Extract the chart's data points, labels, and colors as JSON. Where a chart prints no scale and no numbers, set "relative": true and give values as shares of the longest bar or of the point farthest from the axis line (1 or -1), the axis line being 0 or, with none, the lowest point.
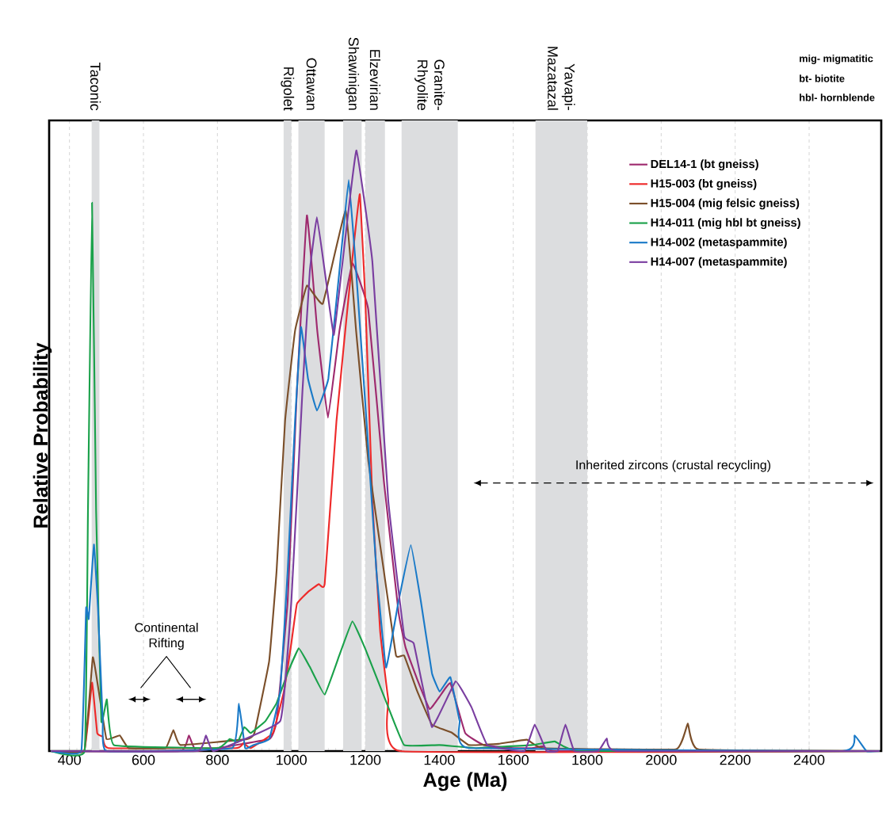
{
  "chart_data": {
    "type": "line",
    "relative": true,
    "xlabel": "Age (Ma)",
    "ylabel": "Relative Probability",
    "xlim": [
      345,
      2595
    ],
    "xticks": [
      400,
      600,
      800,
      1000,
      1200,
      1400,
      1600,
      1800,
      2000,
      2200,
      2400
    ],
    "grid": "x",
    "legend": "top right",
    "series": [
      {
        "name": "DEL14-1 (bt gneiss)",
        "color": "#9e2a6e",
        "x": [
          350,
          700,
          723,
          745,
          940,
          960,
          990,
          1015,
          1042,
          1070,
          1099,
          1130,
          1165,
          1208,
          1250,
          1290,
          1309,
          1340,
          1374,
          1400,
          1430,
          1470,
          1520,
          1600,
          1650,
          1682,
          1720,
          2590
        ],
        "values": [
          0,
          0,
          0.026,
          0,
          0.02,
          0.05,
          0.25,
          0.6,
          0.892,
          0.7,
          0.555,
          0.7,
          0.812,
          0.735,
          0.45,
          0.23,
          0.172,
          0.12,
          0.07,
          0.09,
          0.113,
          0.03,
          0.01,
          0.005,
          0.005,
          0.008,
          0,
          0
        ]
      },
      {
        "name": "H15-003 (bt gneiss)",
        "color": "#ee2a2a",
        "x": [
          350,
          440,
          461,
          475,
          490,
          505,
          850,
          870,
          890,
          950,
          980,
          1000,
          1015,
          1045,
          1074,
          1090,
          1122,
          1165,
          1185,
          1200,
          1219,
          1240,
          1262,
          1294,
          2590
        ],
        "values": [
          0,
          0,
          0.114,
          0.03,
          0.024,
          0.005,
          0.005,
          0.013,
          0.005,
          0.03,
          0.1,
          0.18,
          0.245,
          0.265,
          0.278,
          0.278,
          0.55,
          0.82,
          0.927,
          0.75,
          0.417,
          0.2,
          0.086,
          0,
          0
        ]
      },
      {
        "name": "H15-004 (mig felsic gneiss)",
        "color": "#7b4f2a",
        "x": [
          350,
          440,
          463,
          479,
          500,
          536,
          560,
          660,
          681,
          700,
          880,
          900,
          940,
          960,
          983,
          1010,
          1042,
          1085,
          1147,
          1175,
          1208,
          1250,
          1283,
          1305,
          1340,
          1380,
          1433,
          1480,
          1560,
          1637,
          1680,
          2040,
          2072,
          2100,
          2590
        ],
        "values": [
          0,
          0,
          0.156,
          0.1,
          0.02,
          0.026,
          0.005,
          0.005,
          0.035,
          0.01,
          0.02,
          0.03,
          0.15,
          0.3,
          0.55,
          0.7,
          0.775,
          0.745,
          0.9,
          0.7,
          0.483,
          0.3,
          0.159,
          0.159,
          0.1,
          0.044,
          0.031,
          0.01,
          0.012,
          0.019,
          0.005,
          0.003,
          0.046,
          0.003,
          0
        ]
      },
      {
        "name": "H14-011 (mig hbl bt gneiss)",
        "color": "#1aa14a",
        "x": [
          350,
          441,
          450,
          461,
          472,
          486,
          501,
          520,
          800,
          833,
          855,
          873,
          890,
          930,
          960,
          990,
          1020,
          1050,
          1090,
          1130,
          1165,
          1200,
          1262,
          1305,
          1400,
          1500,
          1650,
          1712,
          1780,
          2590
        ],
        "values": [
          0,
          0,
          0.4,
          0.913,
          0.4,
          0.05,
          0.086,
          0.01,
          0.005,
          0.02,
          0.015,
          0.04,
          0.03,
          0.05,
          0.08,
          0.13,
          0.171,
          0.14,
          0.094,
          0.16,
          0.216,
          0.17,
          0.073,
          0.01,
          0.01,
          0.005,
          0.01,
          0.016,
          0,
          0
        ]
      },
      {
        "name": "H14-002 (metaspammite)",
        "color": "#1a7ac8",
        "x": [
          350,
          432,
          445,
          452,
          466,
          477,
          490,
          500,
          840,
          858,
          875,
          897,
          940,
          970,
          990,
          1010,
          1026,
          1045,
          1069,
          1100,
          1130,
          1155,
          1175,
          1203,
          1230,
          1256,
          1290,
          1323,
          1350,
          1380,
          1401,
          1430,
          1455,
          1480,
          2490,
          2523,
          2555,
          2590
        ],
        "values": [
          0,
          0,
          0.238,
          0.22,
          0.344,
          0.238,
          0.05,
          0,
          0.005,
          0.079,
          0.005,
          0.01,
          0.02,
          0.1,
          0.3,
          0.55,
          0.706,
          0.62,
          0.567,
          0.62,
          0.8,
          0.951,
          0.8,
          0.55,
          0.3,
          0.139,
          0.25,
          0.343,
          0.25,
          0.13,
          0.099,
          0.123,
          0.05,
          0.005,
          0,
          0.026,
          0,
          0
        ]
      },
      {
        "name": "H14-007 (metaspammite)",
        "color": "#7a3ea0",
        "x": [
          350,
          745,
          769,
          790,
          970,
          1000,
          1030,
          1050,
          1069,
          1090,
          1115,
          1145,
          1176,
          1219,
          1262,
          1305,
          1331,
          1380,
          1444,
          1487,
          1530,
          1630,
          1658,
          1690,
          1720,
          1741,
          1765,
          1830,
          1853,
          1880,
          2590
        ],
        "values": [
          0,
          0,
          0.026,
          0,
          0.05,
          0.25,
          0.6,
          0.8,
          0.889,
          0.8,
          0.693,
          0.85,
          1.0,
          0.815,
          0.417,
          0.192,
          0.179,
          0.04,
          0.116,
          0.073,
          0.01,
          0,
          0.044,
          0,
          0,
          0.044,
          0,
          0,
          0.021,
          0,
          0
        ]
      }
    ],
    "bands": [
      {
        "axis": "x",
        "from": 460,
        "to": 481,
        "label": "Taconic",
        "color": "#dcdddf"
      },
      {
        "axis": "x",
        "from": 979,
        "to": 1000,
        "label": "Rigolet",
        "color": "#dcdddf"
      },
      {
        "axis": "x",
        "from": 1019,
        "to": 1090,
        "label": "Ottawan",
        "color": "#dcdddf"
      },
      {
        "axis": "x",
        "from": 1140,
        "to": 1190,
        "label": "Shawinigan",
        "color": "#dcdddf"
      },
      {
        "axis": "x",
        "from": 1200,
        "to": 1253,
        "label": "Elzevirian",
        "color": "#dcdddf"
      },
      {
        "axis": "x",
        "from": 1298,
        "to": 1450,
        "label": "Granite-Rhyolite",
        "color": "#dcdddf"
      },
      {
        "axis": "x",
        "from": 1660,
        "to": 1800,
        "label": "Yavapi-Mazatazal",
        "color": "#dcdddf"
      }
    ],
    "annotations": [
      "Continental Rifting",
      "Inherited zircons (crustal recycling)",
      "mig- migmatitic",
      "bt- biotite",
      "hbl- hornblende"
    ]
  }
}
